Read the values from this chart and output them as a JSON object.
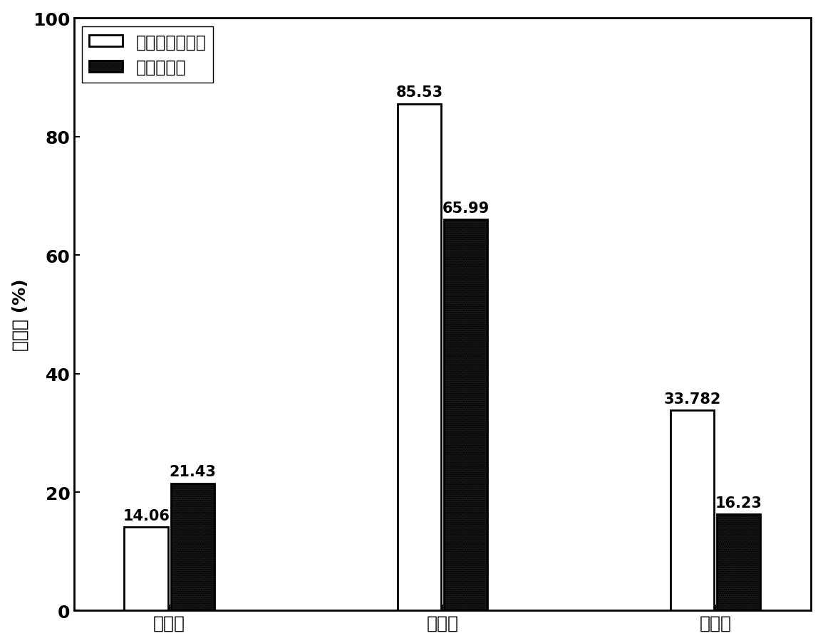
{
  "categories": [
    "黄铁矿",
    "方铅矿",
    "闪锌矿"
  ],
  "series1_label": "本发明浮选药剂",
  "series2_label": "乙基钓黄药",
  "series1_values": [
    14.06,
    85.53,
    33.782
  ],
  "series2_values": [
    21.43,
    65.99,
    16.23
  ],
  "series1_labels": [
    "14.06",
    "85.53",
    "33.782"
  ],
  "series2_labels": [
    "21.43",
    "65.99",
    "16.23"
  ],
  "ylabel": "回收率 (%)",
  "ylim": [
    0,
    100
  ],
  "yticks": [
    0,
    20,
    40,
    60,
    80,
    100
  ],
  "background_color": "#ffffff",
  "series1_facecolor": "#ffffff",
  "series1_edgecolor": "#000000",
  "series2_facecolor": "#1a1a1a",
  "series2_edgecolor": "#000000",
  "annotation_fontsize": 15,
  "label_fontsize": 18,
  "tick_fontsize": 18,
  "legend_fontsize": 17,
  "linewidth": 2.0,
  "bar_width": 0.32,
  "x_positions": [
    1.0,
    3.0,
    5.0
  ]
}
